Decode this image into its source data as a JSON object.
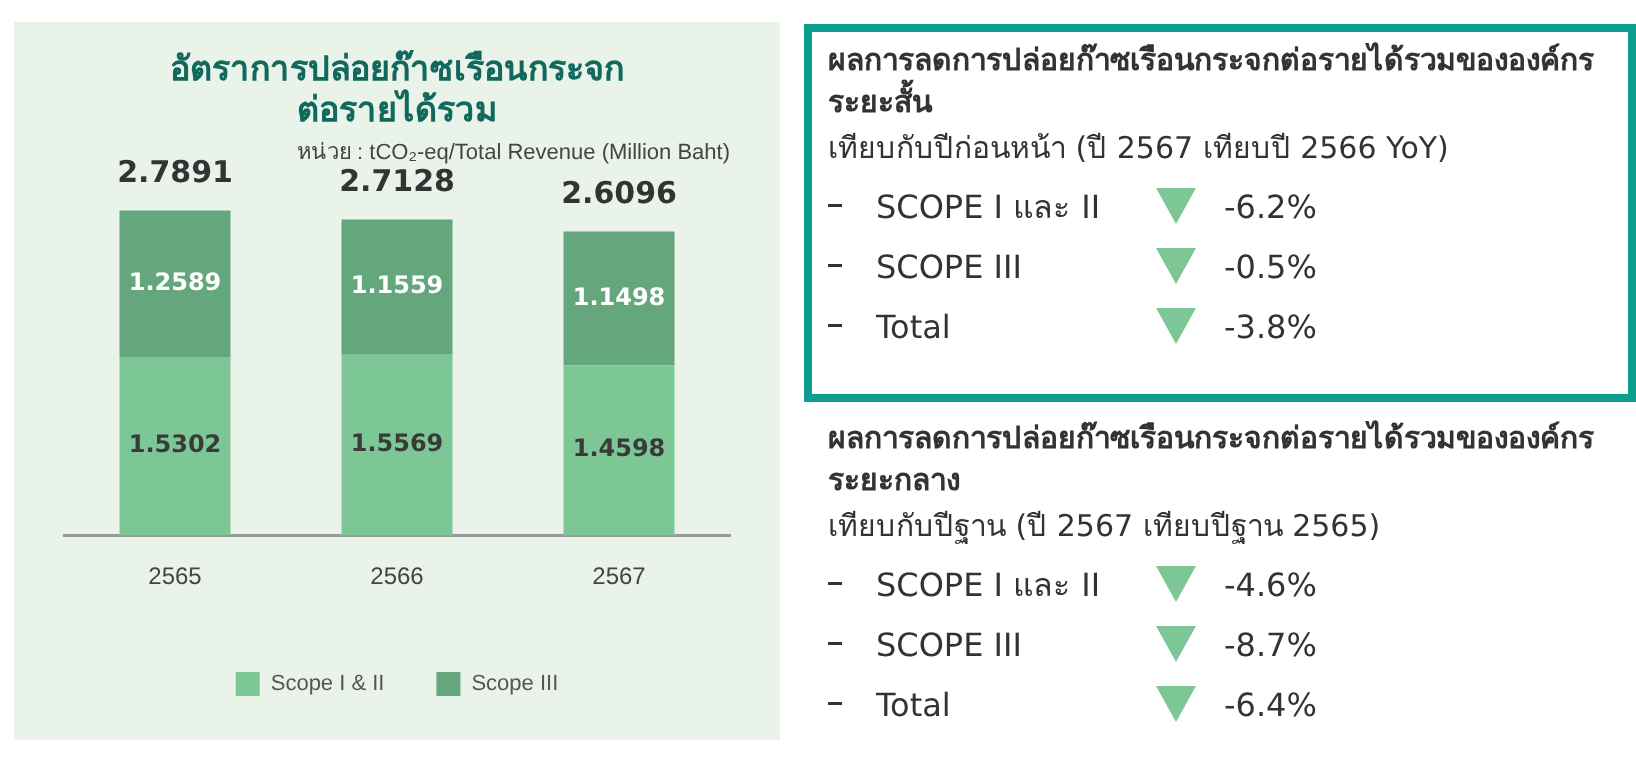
{
  "chart_data": [
    {
      "type": "bar",
      "title": "อัตราการปล่อยก๊าซเรือนกระจก\nต่อรายได้รวม",
      "subtitle": "หน่วย : tCO₂-eq/Total Revenue (Million Baht)",
      "categories": [
        "2565",
        "2566",
        "2567"
      ],
      "stacked": true,
      "data_labels": true,
      "totals": [
        "2.7891",
        "2.7128",
        "2.6096"
      ],
      "legend": "bottom",
      "grid": false,
      "tick_labels": "x",
      "series": [
        {
          "name": "Scope I & II",
          "color": "#7dc796",
          "values": [
            1.5302,
            1.5569,
            1.4598
          ]
        },
        {
          "name": "Scope III",
          "color": "#65a77c",
          "values": [
            1.2589,
            1.1559,
            1.1498
          ]
        }
      ]
    },
    {
      "type": "other",
      "title": "ผลการลดการปล่อยก๊าซเรือนกระจกต่อรายได้รวมขององค์กร ระยะสั้น",
      "subtitle": "เทียบกับปีก่อนหน้า (ปี 2567 เทียบปี 2566 YoY)",
      "annotations": [
        "SCOPE I และ II",
        "-6.2%",
        "SCOPE III",
        "-0.5%",
        "Total",
        "-3.8%"
      ]
    },
    {
      "type": "other",
      "title": "ผลการลดการปล่อยก๊าซเรือนกระจกต่อรายได้รวมขององค์กร ระยะกลาง",
      "subtitle": "เทียบกับปีฐาน (ปี 2567 เทียบปีฐาน 2565)",
      "annotations": [
        "SCOPE I และ II",
        "-4.6%",
        "SCOPE III",
        "-8.7%",
        "Total",
        "-6.4%"
      ]
    }
  ]
}
